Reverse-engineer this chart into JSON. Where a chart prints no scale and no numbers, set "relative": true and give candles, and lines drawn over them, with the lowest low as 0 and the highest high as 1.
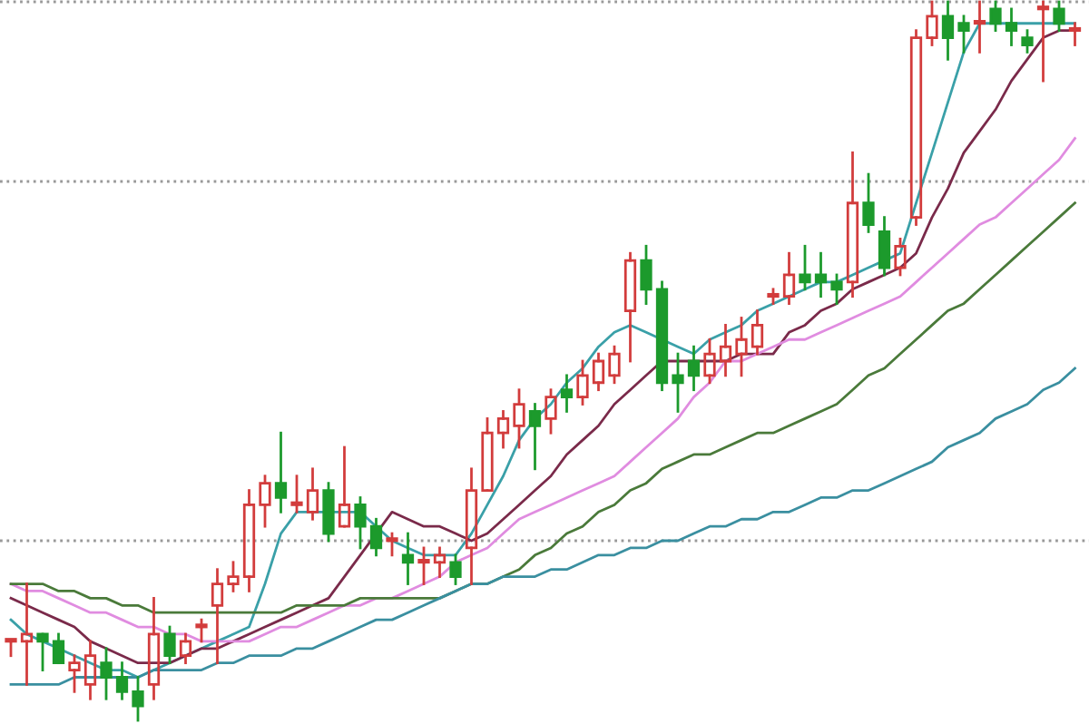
{
  "chart_data": {
    "type": "candlestick",
    "relative": true,
    "categories": [
      null,
      null,
      null,
      null,
      null,
      null,
      null,
      null,
      null,
      null,
      null,
      null,
      null,
      null,
      null,
      null,
      null,
      null,
      null,
      null,
      null,
      null,
      null,
      null,
      null,
      null,
      null,
      null,
      null,
      null,
      null,
      null,
      null,
      null,
      null,
      null,
      null,
      null,
      null,
      null,
      null,
      null,
      null,
      null,
      null,
      null,
      null,
      null,
      null,
      null,
      null,
      null,
      null,
      null,
      null,
      null,
      null,
      null,
      null,
      null,
      null,
      null,
      null,
      null,
      null,
      null,
      null,
      null
    ],
    "ohlc": [
      [
        0.11,
        0.11,
        0.09,
        0.11
      ],
      [
        0.11,
        0.19,
        0.05,
        0.12
      ],
      [
        0.12,
        0.12,
        0.07,
        0.11
      ],
      [
        0.11,
        0.12,
        0.08,
        0.08
      ],
      [
        0.07,
        0.09,
        0.04,
        0.08
      ],
      [
        0.05,
        0.11,
        0.03,
        0.09
      ],
      [
        0.08,
        0.1,
        0.03,
        0.06
      ],
      [
        0.06,
        0.08,
        0.03,
        0.04
      ],
      [
        0.04,
        0.06,
        0,
        0.02
      ],
      [
        0.05,
        0.17,
        0.03,
        0.12
      ],
      [
        0.12,
        0.13,
        0.08,
        0.09
      ],
      [
        0.09,
        0.12,
        0.08,
        0.11
      ],
      [
        0.13,
        0.14,
        0.11,
        0.13
      ],
      [
        0.16,
        0.21,
        0.08,
        0.19
      ],
      [
        0.19,
        0.22,
        0.18,
        0.2
      ],
      [
        0.2,
        0.32,
        0.18,
        0.3
      ],
      [
        0.3,
        0.34,
        0.27,
        0.33
      ],
      [
        0.33,
        0.4,
        0.29,
        0.31
      ],
      [
        0.3,
        0.34,
        0.29,
        0.3
      ],
      [
        0.29,
        0.35,
        0.28,
        0.32
      ],
      [
        0.32,
        0.33,
        0.25,
        0.26
      ],
      [
        0.27,
        0.38,
        0.27,
        0.3
      ],
      [
        0.3,
        0.31,
        0.24,
        0.27
      ],
      [
        0.27,
        0.28,
        0.23,
        0.24
      ],
      [
        0.25,
        0.26,
        0.23,
        0.25
      ],
      [
        0.23,
        0.26,
        0.19,
        0.22
      ],
      [
        0.22,
        0.24,
        0.19,
        0.22
      ],
      [
        0.22,
        0.24,
        0.2,
        0.23
      ],
      [
        0.22,
        0.23,
        0.19,
        0.2
      ],
      [
        0.24,
        0.35,
        0.19,
        0.32
      ],
      [
        0.32,
        0.42,
        0.32,
        0.4
      ],
      [
        0.4,
        0.43,
        0.38,
        0.42
      ],
      [
        0.41,
        0.46,
        0.38,
        0.44
      ],
      [
        0.43,
        0.44,
        0.35,
        0.41
      ],
      [
        0.42,
        0.46,
        0.4,
        0.45
      ],
      [
        0.46,
        0.48,
        0.43,
        0.45
      ],
      [
        0.45,
        0.5,
        0.44,
        0.48
      ],
      [
        0.47,
        0.51,
        0.46,
        0.5
      ],
      [
        0.48,
        0.52,
        0.47,
        0.51
      ],
      [
        0.57,
        0.65,
        0.5,
        0.64
      ],
      [
        0.64,
        0.66,
        0.58,
        0.6
      ],
      [
        0.6,
        0.61,
        0.46,
        0.47
      ],
      [
        0.48,
        0.51,
        0.43,
        0.47
      ],
      [
        0.5,
        0.52,
        0.46,
        0.48
      ],
      [
        0.48,
        0.53,
        0.47,
        0.51
      ],
      [
        0.5,
        0.55,
        0.48,
        0.52
      ],
      [
        0.51,
        0.56,
        0.48,
        0.53
      ],
      [
        0.52,
        0.57,
        0.51,
        0.55
      ],
      [
        0.59,
        0.6,
        0.58,
        0.59
      ],
      [
        0.59,
        0.65,
        0.58,
        0.62
      ],
      [
        0.62,
        0.66,
        0.6,
        0.61
      ],
      [
        0.62,
        0.65,
        0.59,
        0.61
      ],
      [
        0.61,
        0.62,
        0.58,
        0.6
      ],
      [
        0.61,
        0.79,
        0.59,
        0.72
      ],
      [
        0.72,
        0.76,
        0.68,
        0.69
      ],
      [
        0.68,
        0.7,
        0.62,
        0.63
      ],
      [
        0.63,
        0.67,
        0.62,
        0.66
      ],
      [
        0.7,
        0.96,
        0.69,
        0.95
      ],
      [
        0.95,
        1,
        0.94,
        0.98
      ],
      [
        0.98,
        1,
        0.92,
        0.95
      ],
      [
        0.97,
        0.98,
        0.93,
        0.96
      ],
      [
        0.97,
        1,
        0.93,
        0.97
      ],
      [
        0.99,
        1,
        0.96,
        0.97
      ],
      [
        0.97,
        0.99,
        0.94,
        0.96
      ],
      [
        0.95,
        0.96,
        0.93,
        0.94
      ],
      [
        0.99,
        1,
        0.89,
        0.99
      ],
      [
        0.99,
        1,
        0.96,
        0.97
      ],
      [
        0.96,
        0.97,
        0.94,
        0.96
      ]
    ],
    "colors": [
      "#d23c3c",
      "#d23c3c",
      "#1c9a2c",
      "#1c9a2c",
      "#d23c3c",
      "#d23c3c",
      "#1c9a2c",
      "#1c9a2c",
      "#1c9a2c",
      "#d23c3c",
      "#1c9a2c",
      "#d23c3c",
      "#d23c3c",
      "#d23c3c",
      "#d23c3c",
      "#d23c3c",
      "#d23c3c",
      "#1c9a2c",
      "#d23c3c",
      "#d23c3c",
      "#1c9a2c",
      "#d23c3c",
      "#1c9a2c",
      "#1c9a2c",
      "#d23c3c",
      "#1c9a2c",
      "#d23c3c",
      "#d23c3c",
      "#1c9a2c",
      "#d23c3c",
      "#d23c3c",
      "#d23c3c",
      "#d23c3c",
      "#1c9a2c",
      "#d23c3c",
      "#1c9a2c",
      "#d23c3c",
      "#d23c3c",
      "#d23c3c",
      "#d23c3c",
      "#1c9a2c",
      "#1c9a2c",
      "#1c9a2c",
      "#1c9a2c",
      "#d23c3c",
      "#d23c3c",
      "#d23c3c",
      "#d23c3c",
      "#d23c3c",
      "#d23c3c",
      "#1c9a2c",
      "#1c9a2c",
      "#1c9a2c",
      "#d23c3c",
      "#1c9a2c",
      "#1c9a2c",
      "#d23c3c",
      "#d23c3c",
      "#d23c3c",
      "#1c9a2c",
      "#1c9a2c",
      "#d23c3c",
      "#1c9a2c",
      "#1c9a2c",
      "#1c9a2c",
      "#d23c3c",
      "#1c9a2c",
      "#d23c3c"
    ],
    "series": [
      {
        "type": "line",
        "color": "#3aa0a8",
        "values": [
          0.14,
          0.12,
          0.11,
          0.1,
          0.09,
          0.08,
          0.07,
          0.07,
          0.06,
          0.07,
          0.08,
          0.09,
          0.1,
          0.11,
          0.12,
          0.13,
          0.19,
          0.26,
          0.29,
          0.29,
          0.29,
          0.29,
          0.29,
          0.27,
          0.25,
          0.24,
          0.23,
          0.23,
          0.23,
          0.26,
          0.3,
          0.34,
          0.39,
          0.42,
          0.44,
          0.47,
          0.49,
          0.52,
          0.54,
          0.55,
          0.54,
          0.53,
          0.52,
          0.51,
          0.53,
          0.54,
          0.55,
          0.57,
          0.58,
          0.59,
          0.6,
          0.61,
          0.61,
          0.62,
          0.63,
          0.64,
          0.65,
          0.72,
          0.79,
          0.86,
          0.93,
          0.97,
          0.97,
          0.97,
          0.97,
          0.97,
          0.97,
          0.97
        ]
      },
      {
        "type": "line",
        "color": "#7a2a4a",
        "values": [
          0.17,
          0.16,
          0.15,
          0.14,
          0.13,
          0.11,
          0.1,
          0.09,
          0.08,
          0.08,
          0.08,
          0.09,
          0.1,
          0.1,
          0.11,
          0.12,
          0.13,
          0.14,
          0.15,
          0.16,
          0.17,
          0.2,
          0.23,
          0.26,
          0.29,
          0.28,
          0.27,
          0.27,
          0.26,
          0.25,
          0.26,
          0.28,
          0.3,
          0.32,
          0.34,
          0.37,
          0.39,
          0.41,
          0.44,
          0.46,
          0.48,
          0.5,
          0.5,
          0.5,
          0.5,
          0.5,
          0.51,
          0.51,
          0.51,
          0.54,
          0.55,
          0.57,
          0.58,
          0.6,
          0.61,
          0.62,
          0.63,
          0.65,
          0.7,
          0.74,
          0.79,
          0.82,
          0.85,
          0.89,
          0.92,
          0.95,
          0.96,
          0.96
        ]
      },
      {
        "type": "line",
        "color": "#e08ce0",
        "values": [
          0.19,
          0.18,
          0.18,
          0.17,
          0.16,
          0.15,
          0.15,
          0.14,
          0.13,
          0.13,
          0.12,
          0.12,
          0.11,
          0.11,
          0.11,
          0.11,
          0.12,
          0.13,
          0.13,
          0.14,
          0.15,
          0.16,
          0.16,
          0.17,
          0.17,
          0.18,
          0.19,
          0.2,
          0.22,
          0.23,
          0.24,
          0.26,
          0.28,
          0.29,
          0.3,
          0.31,
          0.32,
          0.33,
          0.34,
          0.36,
          0.38,
          0.4,
          0.42,
          0.45,
          0.47,
          0.5,
          0.5,
          0.51,
          0.52,
          0.53,
          0.53,
          0.54,
          0.55,
          0.56,
          0.57,
          0.58,
          0.59,
          0.61,
          0.63,
          0.65,
          0.67,
          0.69,
          0.7,
          0.72,
          0.74,
          0.76,
          0.78,
          0.81
        ]
      },
      {
        "type": "line",
        "color": "#4a7a3a",
        "values": [
          0.19,
          0.19,
          0.19,
          0.18,
          0.18,
          0.17,
          0.17,
          0.16,
          0.16,
          0.15,
          0.15,
          0.15,
          0.15,
          0.15,
          0.15,
          0.15,
          0.15,
          0.15,
          0.16,
          0.16,
          0.16,
          0.16,
          0.17,
          0.17,
          0.17,
          0.17,
          0.17,
          0.17,
          0.18,
          0.19,
          0.19,
          0.2,
          0.21,
          0.23,
          0.24,
          0.26,
          0.27,
          0.29,
          0.3,
          0.32,
          0.33,
          0.35,
          0.36,
          0.37,
          0.37,
          0.38,
          0.39,
          0.4,
          0.4,
          0.41,
          0.42,
          0.43,
          0.44,
          0.46,
          0.48,
          0.49,
          0.51,
          0.53,
          0.55,
          0.57,
          0.58,
          0.6,
          0.62,
          0.64,
          0.66,
          0.68,
          0.7,
          0.72
        ]
      },
      {
        "type": "line",
        "color": "#3a8fa0",
        "values": [
          0.05,
          0.05,
          0.05,
          0.05,
          0.06,
          0.06,
          0.06,
          0.06,
          0.06,
          0.07,
          0.07,
          0.07,
          0.07,
          0.08,
          0.08,
          0.09,
          0.09,
          0.09,
          0.1,
          0.1,
          0.11,
          0.12,
          0.13,
          0.14,
          0.14,
          0.15,
          0.16,
          0.17,
          0.18,
          0.19,
          0.19,
          0.2,
          0.2,
          0.2,
          0.21,
          0.21,
          0.22,
          0.23,
          0.23,
          0.24,
          0.24,
          0.25,
          0.25,
          0.26,
          0.27,
          0.27,
          0.28,
          0.28,
          0.29,
          0.29,
          0.3,
          0.31,
          0.31,
          0.32,
          0.32,
          0.33,
          0.34,
          0.35,
          0.36,
          0.38,
          0.39,
          0.4,
          0.42,
          0.43,
          0.44,
          0.46,
          0.47,
          0.49
        ]
      }
    ],
    "ref_lines": [
      {
        "axis": "y",
        "value": 1.0,
        "color": "#999999",
        "line_style": "dotted"
      },
      {
        "axis": "y",
        "value": 0.75,
        "color": "#999999",
        "line_style": "dotted"
      },
      {
        "axis": "y",
        "value": 0.25,
        "color": "#999999",
        "line_style": "dotted"
      }
    ]
  }
}
